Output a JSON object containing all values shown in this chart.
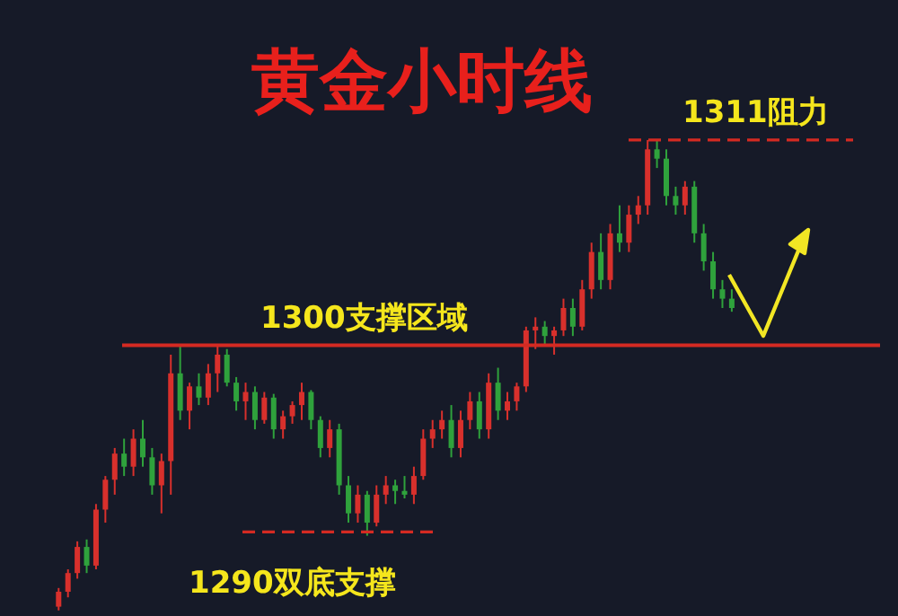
{
  "chart_data": {
    "type": "candlestick",
    "title": "黄金小时线",
    "categories": [
      null,
      null,
      null,
      null,
      null,
      null,
      null,
      null,
      null,
      null,
      null,
      null,
      null,
      null,
      null,
      null,
      null,
      null,
      null,
      null,
      null,
      null,
      null,
      null,
      null,
      null,
      null,
      null,
      null,
      null,
      null,
      null,
      null,
      null,
      null,
      null,
      null,
      null,
      null,
      null,
      null,
      null,
      null,
      null,
      null,
      null,
      null,
      null,
      null,
      null,
      null,
      null,
      null,
      null,
      null,
      null,
      null,
      null,
      null,
      null,
      null,
      null,
      null,
      null,
      null,
      null,
      null,
      null,
      null,
      null,
      null,
      null,
      null
    ],
    "ohlc": [
      [
        1286.0,
        1287.0,
        1285.8,
        1286.8
      ],
      [
        1286.8,
        1288.0,
        1286.5,
        1287.8
      ],
      [
        1287.8,
        1289.5,
        1287.5,
        1289.2
      ],
      [
        1289.2,
        1289.6,
        1287.8,
        1288.2
      ],
      [
        1288.2,
        1291.5,
        1288.0,
        1291.2
      ],
      [
        1291.2,
        1293.0,
        1290.5,
        1292.8
      ],
      [
        1292.8,
        1294.5,
        1292.0,
        1294.2
      ],
      [
        1294.2,
        1295.0,
        1293.0,
        1293.5
      ],
      [
        1293.5,
        1295.5,
        1293.0,
        1295.0
      ],
      [
        1295.0,
        1296.0,
        1293.5,
        1294.0
      ],
      [
        1294.0,
        1294.5,
        1292.0,
        1292.5
      ],
      [
        1292.5,
        1294.2,
        1291.0,
        1293.8
      ],
      [
        1293.8,
        1299.5,
        1292.0,
        1298.5
      ],
      [
        1298.5,
        1300.0,
        1296.0,
        1296.5
      ],
      [
        1296.5,
        1298.0,
        1295.5,
        1297.8
      ],
      [
        1297.8,
        1298.5,
        1296.8,
        1297.2
      ],
      [
        1297.2,
        1299.0,
        1296.8,
        1298.5
      ],
      [
        1298.5,
        1300.0,
        1297.5,
        1299.5
      ],
      [
        1299.5,
        1299.8,
        1297.8,
        1298.0
      ],
      [
        1298.0,
        1298.3,
        1296.5,
        1297.0
      ],
      [
        1297.0,
        1298.0,
        1296.0,
        1297.5
      ],
      [
        1297.5,
        1297.8,
        1295.5,
        1296.0
      ],
      [
        1296.0,
        1297.5,
        1295.8,
        1297.2
      ],
      [
        1297.2,
        1297.4,
        1295.0,
        1295.5
      ],
      [
        1295.5,
        1296.5,
        1295.0,
        1296.2
      ],
      [
        1296.2,
        1297.0,
        1295.8,
        1296.8
      ],
      [
        1296.8,
        1298.0,
        1296.0,
        1297.5
      ],
      [
        1297.5,
        1297.6,
        1295.5,
        1296.0
      ],
      [
        1296.0,
        1296.2,
        1294.0,
        1294.5
      ],
      [
        1294.5,
        1296.0,
        1294.0,
        1295.5
      ],
      [
        1295.5,
        1295.8,
        1292.0,
        1292.5
      ],
      [
        1292.5,
        1293.0,
        1290.5,
        1291.0
      ],
      [
        1291.0,
        1292.5,
        1290.5,
        1292.0
      ],
      [
        1292.0,
        1292.2,
        1289.8,
        1290.5
      ],
      [
        1290.5,
        1292.5,
        1290.3,
        1292.0
      ],
      [
        1292.0,
        1293.0,
        1291.5,
        1292.5
      ],
      [
        1292.5,
        1292.8,
        1291.5,
        1292.2
      ],
      [
        1292.2,
        1293.0,
        1291.8,
        1292.0
      ],
      [
        1292.0,
        1293.5,
        1291.5,
        1293.0
      ],
      [
        1293.0,
        1295.5,
        1292.8,
        1295.0
      ],
      [
        1295.0,
        1296.0,
        1294.5,
        1295.5
      ],
      [
        1295.5,
        1296.5,
        1295.0,
        1296.0
      ],
      [
        1296.0,
        1296.8,
        1294.0,
        1294.5
      ],
      [
        1294.5,
        1296.5,
        1294.0,
        1296.0
      ],
      [
        1296.0,
        1297.5,
        1295.5,
        1297.0
      ],
      [
        1297.0,
        1297.5,
        1295.0,
        1295.5
      ],
      [
        1295.5,
        1298.5,
        1295.0,
        1298.0
      ],
      [
        1298.0,
        1298.8,
        1296.0,
        1296.5
      ],
      [
        1296.5,
        1297.5,
        1296.0,
        1297.0
      ],
      [
        1297.0,
        1298.0,
        1296.5,
        1297.8
      ],
      [
        1297.8,
        1301.0,
        1297.5,
        1300.8
      ],
      [
        1300.8,
        1301.5,
        1299.8,
        1301.0
      ],
      [
        1301.0,
        1301.3,
        1300.0,
        1300.5
      ],
      [
        1300.5,
        1301.0,
        1299.5,
        1300.8
      ],
      [
        1300.8,
        1302.5,
        1300.5,
        1302.0
      ],
      [
        1302.0,
        1302.5,
        1300.5,
        1301.0
      ],
      [
        1301.0,
        1303.5,
        1300.8,
        1303.0
      ],
      [
        1303.0,
        1305.5,
        1302.5,
        1305.0
      ],
      [
        1305.0,
        1306.0,
        1303.0,
        1303.5
      ],
      [
        1303.5,
        1306.5,
        1303.0,
        1306.0
      ],
      [
        1306.0,
        1307.5,
        1305.0,
        1305.5
      ],
      [
        1305.5,
        1307.5,
        1305.0,
        1307.0
      ],
      [
        1307.0,
        1308.0,
        1306.5,
        1307.5
      ],
      [
        1307.5,
        1311.0,
        1307.0,
        1310.5
      ],
      [
        1310.5,
        1311.0,
        1309.5,
        1310.0
      ],
      [
        1310.0,
        1310.5,
        1307.5,
        1308.0
      ],
      [
        1308.0,
        1308.5,
        1307.0,
        1307.5
      ],
      [
        1307.5,
        1308.8,
        1307.0,
        1308.5
      ],
      [
        1308.5,
        1308.8,
        1305.5,
        1306.0
      ],
      [
        1306.0,
        1306.5,
        1304.0,
        1304.5
      ],
      [
        1304.5,
        1305.0,
        1302.5,
        1303.0
      ],
      [
        1303.0,
        1303.5,
        1302.0,
        1302.5
      ],
      [
        1302.5,
        1303.0,
        1301.8,
        1302.0
      ]
    ],
    "ylim": [
      1285.5,
      1318.5
    ],
    "tick_labels": false,
    "ref_lines": [
      {
        "axis": "y",
        "value": 1311,
        "label": "1311阻力",
        "color": "#d42a22",
        "line_style": "dashed"
      },
      {
        "axis": "y",
        "value": 1300,
        "label": "1300支撑区域",
        "color": "#d42a22",
        "line_style": "solid"
      },
      {
        "axis": "y",
        "value": 1290,
        "label": "1290双底支撑",
        "color": "#d42a22",
        "line_style": "dashed"
      }
    ]
  }
}
